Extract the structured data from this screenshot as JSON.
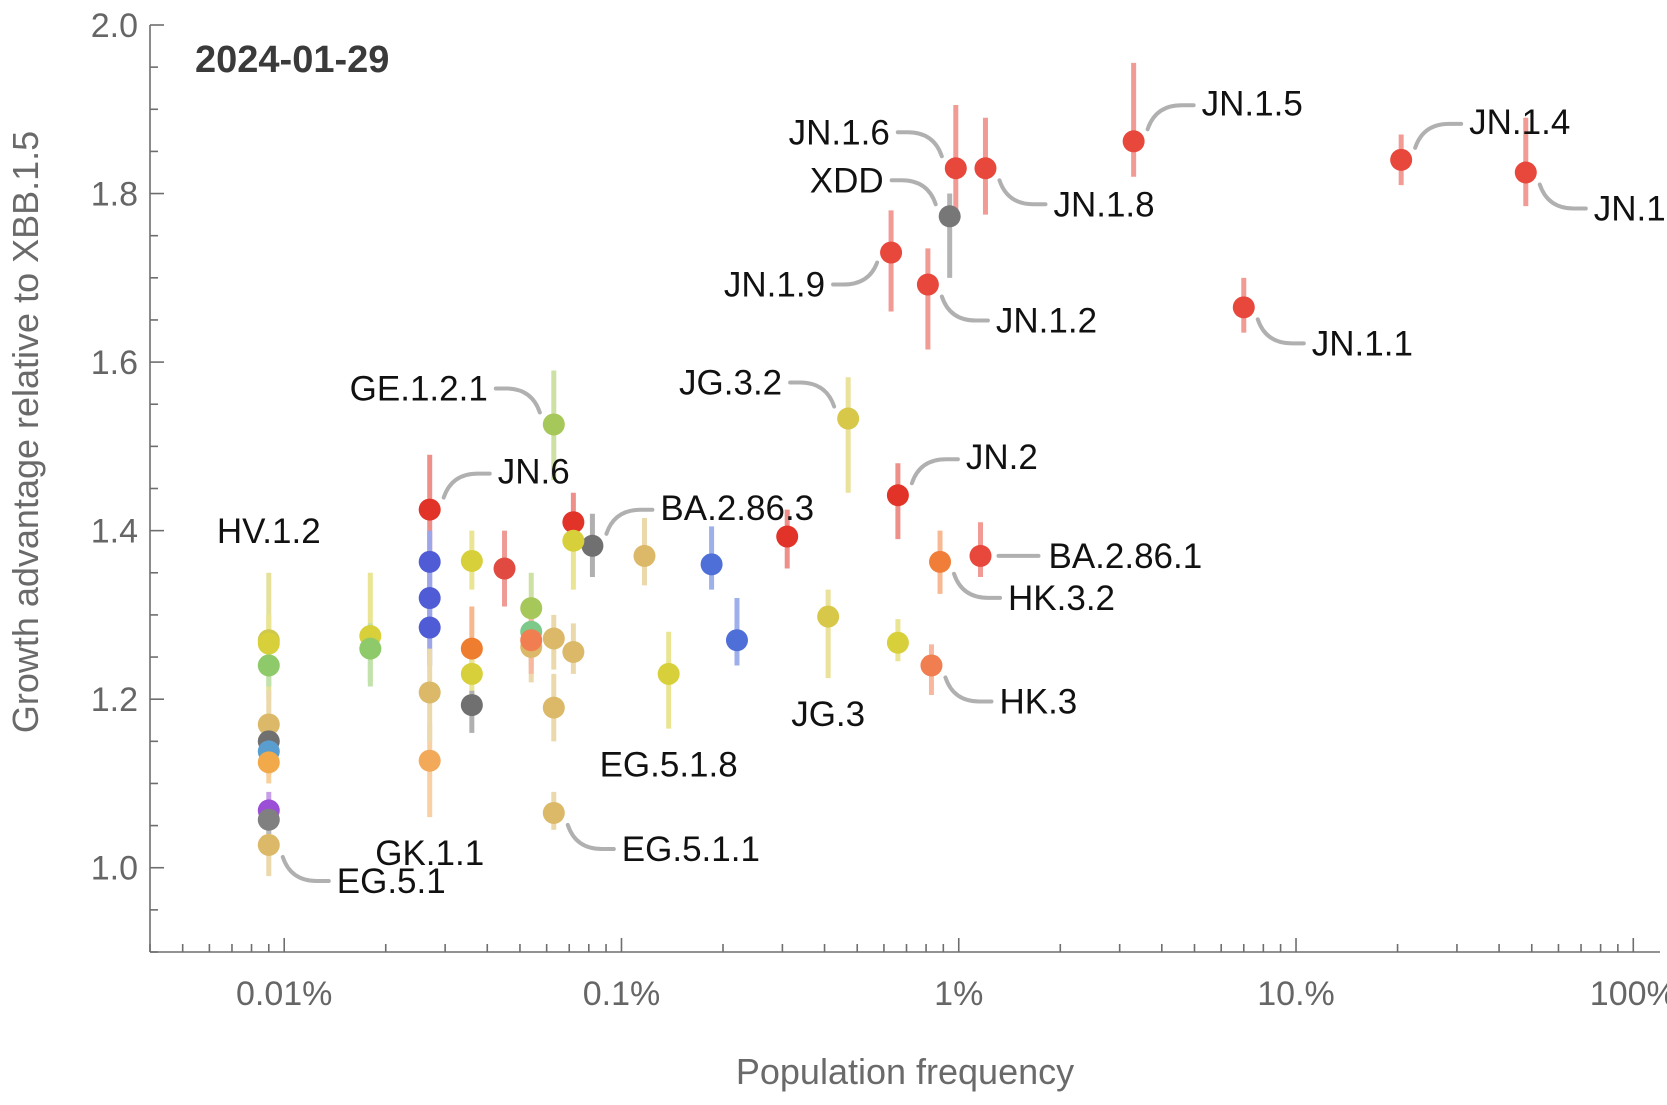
{
  "chart_data": {
    "type": "scatter",
    "title": "2024-01-29",
    "xlabel": "Population frequency",
    "ylabel": "Growth advantage relative to XBB.1.5",
    "x_scale": "log",
    "xlim": [
      4e-05,
      1.2
    ],
    "ylim": [
      0.9,
      2.0
    ],
    "x_ticks": [
      {
        "value": 0.0001,
        "label": "0.01%"
      },
      {
        "value": 0.001,
        "label": "0.1%"
      },
      {
        "value": 0.01,
        "label": "1%"
      },
      {
        "value": 0.1,
        "label": "10.%"
      },
      {
        "value": 1.0,
        "label": "100%"
      }
    ],
    "y_ticks": [
      {
        "value": 1.0,
        "label": "1.0"
      },
      {
        "value": 1.2,
        "label": "1.2"
      },
      {
        "value": 1.4,
        "label": "1.4"
      },
      {
        "value": 1.6,
        "label": "1.6"
      },
      {
        "value": 1.8,
        "label": "1.8"
      },
      {
        "value": 2.0,
        "label": "2.0"
      }
    ],
    "grid": false,
    "legend": "none",
    "points": [
      {
        "label": "JN.1",
        "x": 0.48,
        "y": 1.825,
        "lo": 1.785,
        "hi": 1.89,
        "color": "#e8473c",
        "label_side": "right"
      },
      {
        "label": "JN.1.4",
        "x": 0.205,
        "y": 1.84,
        "lo": 1.81,
        "hi": 1.87,
        "color": "#e8473c",
        "label_side": "right"
      },
      {
        "label": "JN.1.5",
        "x": 0.033,
        "y": 1.862,
        "lo": 1.82,
        "hi": 1.955,
        "color": "#e8473c",
        "label_side": "right"
      },
      {
        "label": "JN.1.6",
        "x": 0.0098,
        "y": 1.83,
        "lo": 1.77,
        "hi": 1.905,
        "color": "#e8473c",
        "label_side": "left"
      },
      {
        "label": "JN.1.8",
        "x": 0.012,
        "y": 1.83,
        "lo": 1.775,
        "hi": 1.89,
        "color": "#e8473c",
        "label_side": "right"
      },
      {
        "label": "XDD",
        "x": 0.0094,
        "y": 1.773,
        "lo": 1.7,
        "hi": 1.8,
        "color": "#777777",
        "label_side": "left"
      },
      {
        "label": "JN.1.9",
        "x": 0.0063,
        "y": 1.73,
        "lo": 1.66,
        "hi": 1.78,
        "color": "#e8473c",
        "label_side": "left"
      },
      {
        "label": "JN.1.2",
        "x": 0.0081,
        "y": 1.692,
        "lo": 1.615,
        "hi": 1.735,
        "color": "#e8473c",
        "label_side": "right"
      },
      {
        "label": "JN.1.1",
        "x": 0.07,
        "y": 1.665,
        "lo": 1.635,
        "hi": 1.7,
        "color": "#e8473c",
        "label_side": "right"
      },
      {
        "label": "GE.1.2.1",
        "x": 0.00063,
        "y": 1.526,
        "lo": 1.46,
        "hi": 1.59,
        "color": "#a6c85a",
        "label_side": "left"
      },
      {
        "label": "JG.3.2",
        "x": 0.0047,
        "y": 1.533,
        "lo": 1.445,
        "hi": 1.582,
        "color": "#d8c84a",
        "label_side": "left"
      },
      {
        "label": "JN.6",
        "x": 0.00027,
        "y": 1.425,
        "lo": 1.37,
        "hi": 1.49,
        "color": "#e23328",
        "label_side": "right"
      },
      {
        "label": "BA.2.86.3",
        "x": 0.00082,
        "y": 1.382,
        "lo": 1.345,
        "hi": 1.42,
        "color": "#707070",
        "label_side": "right"
      },
      {
        "label": "JN.2",
        "x": 0.0066,
        "y": 1.442,
        "lo": 1.39,
        "hi": 1.48,
        "color": "#e23328",
        "label_side": "right"
      },
      {
        "label": "BA.2.86.1",
        "x": 0.0116,
        "y": 1.37,
        "lo": 1.345,
        "hi": 1.41,
        "color": "#e8473c",
        "label_side": "right"
      },
      {
        "label": "HK.3.2",
        "x": 0.0088,
        "y": 1.363,
        "lo": 1.325,
        "hi": 1.4,
        "color": "#f07e38",
        "label_side": "right"
      },
      {
        "label": "HV.1.2",
        "x": 9e-05,
        "y": 1.27,
        "lo": 1.2,
        "hi": 1.35,
        "color": "#d0c84a",
        "label_side": "top"
      },
      {
        "label": "JG.3",
        "x": 0.0041,
        "y": 1.298,
        "lo": 1.225,
        "hi": 1.33,
        "color": "#d8c84a",
        "label_side": "bottom"
      },
      {
        "label": "HK.3",
        "x": 0.0083,
        "y": 1.24,
        "lo": 1.205,
        "hi": 1.265,
        "color": "#f07e50",
        "label_side": "right"
      },
      {
        "label": "EG.5.1.8",
        "x": 0.00138,
        "y": 1.23,
        "lo": 1.165,
        "hi": 1.28,
        "color": "#d8d03a",
        "label_side": "bottom"
      },
      {
        "label": "GK.1.1",
        "x": 0.00027,
        "y": 1.127,
        "lo": 1.06,
        "hi": 1.17,
        "color": "#f2a95a",
        "label_side": "bottom"
      },
      {
        "label": "EG.5.1.1",
        "x": 0.00063,
        "y": 1.065,
        "lo": 1.045,
        "hi": 1.09,
        "color": "#dbb968",
        "label_side": "right"
      },
      {
        "label": "EG.5.1",
        "x": 9e-05,
        "y": 1.027,
        "lo": 0.99,
        "hi": 1.06,
        "color": "#dbb968",
        "label_side": "right"
      },
      {
        "label": "",
        "x": 0.00027,
        "y": 1.363,
        "lo": 1.32,
        "hi": 1.4,
        "color": "#4f5cd6",
        "label_side": "none"
      },
      {
        "label": "",
        "x": 0.00027,
        "y": 1.32,
        "lo": 1.28,
        "hi": 1.35,
        "color": "#4f5cd6",
        "label_side": "none"
      },
      {
        "label": "",
        "x": 0.00027,
        "y": 1.285,
        "lo": 1.24,
        "hi": 1.32,
        "color": "#4f5cd6",
        "label_side": "none"
      },
      {
        "label": "",
        "x": 0.00027,
        "y": 1.208,
        "lo": 1.15,
        "hi": 1.26,
        "color": "#dbb968",
        "label_side": "none"
      },
      {
        "label": "",
        "x": 0.00018,
        "y": 1.275,
        "lo": 1.22,
        "hi": 1.35,
        "color": "#d8d03a",
        "label_side": "none"
      },
      {
        "label": "",
        "x": 0.00018,
        "y": 1.26,
        "lo": 1.215,
        "hi": 1.29,
        "color": "#8ec96a",
        "label_side": "none"
      },
      {
        "label": "",
        "x": 0.00036,
        "y": 1.364,
        "lo": 1.33,
        "hi": 1.4,
        "color": "#d8d03a",
        "label_side": "none"
      },
      {
        "label": "",
        "x": 0.00036,
        "y": 1.26,
        "lo": 1.22,
        "hi": 1.31,
        "color": "#ef7d2f",
        "label_side": "none"
      },
      {
        "label": "",
        "x": 0.00036,
        "y": 1.23,
        "lo": 1.19,
        "hi": 1.27,
        "color": "#d8d03a",
        "label_side": "none"
      },
      {
        "label": "",
        "x": 0.00036,
        "y": 1.193,
        "lo": 1.16,
        "hi": 1.21,
        "color": "#707070",
        "label_side": "none"
      },
      {
        "label": "",
        "x": 0.00045,
        "y": 1.355,
        "lo": 1.31,
        "hi": 1.4,
        "color": "#e04a40",
        "label_side": "none"
      },
      {
        "label": "",
        "x": 0.00054,
        "y": 1.308,
        "lo": 1.27,
        "hi": 1.35,
        "color": "#a6c85a",
        "label_side": "none"
      },
      {
        "label": "",
        "x": 0.00054,
        "y": 1.28,
        "lo": 1.24,
        "hi": 1.31,
        "color": "#7cc98a",
        "label_side": "none"
      },
      {
        "label": "",
        "x": 0.00054,
        "y": 1.262,
        "lo": 1.22,
        "hi": 1.3,
        "color": "#dbb968",
        "label_side": "none"
      },
      {
        "label": "",
        "x": 0.00054,
        "y": 1.27,
        "lo": 1.23,
        "hi": 1.3,
        "color": "#f07e50",
        "label_side": "none"
      },
      {
        "label": "",
        "x": 0.00063,
        "y": 1.272,
        "lo": 1.235,
        "hi": 1.3,
        "color": "#dbb968",
        "label_side": "none"
      },
      {
        "label": "",
        "x": 0.00063,
        "y": 1.19,
        "lo": 1.15,
        "hi": 1.23,
        "color": "#dbb968",
        "label_side": "none"
      },
      {
        "label": "",
        "x": 0.00072,
        "y": 1.41,
        "lo": 1.38,
        "hi": 1.445,
        "color": "#e23328",
        "label_side": "none"
      },
      {
        "label": "",
        "x": 0.00072,
        "y": 1.388,
        "lo": 1.33,
        "hi": 1.42,
        "color": "#d8d03a",
        "label_side": "none"
      },
      {
        "label": "",
        "x": 0.00072,
        "y": 1.256,
        "lo": 1.23,
        "hi": 1.29,
        "color": "#dbb968",
        "label_side": "none"
      },
      {
        "label": "",
        "x": 0.00117,
        "y": 1.37,
        "lo": 1.335,
        "hi": 1.415,
        "color": "#dbb968",
        "label_side": "none"
      },
      {
        "label": "",
        "x": 0.00185,
        "y": 1.36,
        "lo": 1.33,
        "hi": 1.405,
        "color": "#4f6fd8",
        "label_side": "none"
      },
      {
        "label": "",
        "x": 0.0022,
        "y": 1.27,
        "lo": 1.24,
        "hi": 1.32,
        "color": "#4f6fd8",
        "label_side": "none"
      },
      {
        "label": "",
        "x": 0.0031,
        "y": 1.393,
        "lo": 1.355,
        "hi": 1.425,
        "color": "#e23328",
        "label_side": "none"
      },
      {
        "label": "",
        "x": 0.0066,
        "y": 1.267,
        "lo": 1.245,
        "hi": 1.295,
        "color": "#d8d03a",
        "label_side": "none"
      },
      {
        "label": "",
        "x": 9e-05,
        "y": 1.266,
        "lo": 1.23,
        "hi": 1.3,
        "color": "#d8d03a",
        "label_side": "none"
      },
      {
        "label": "",
        "x": 9e-05,
        "y": 1.24,
        "lo": 1.215,
        "hi": 1.27,
        "color": "#8ec96a",
        "label_side": "none"
      },
      {
        "label": "",
        "x": 9e-05,
        "y": 1.17,
        "lo": 1.14,
        "hi": 1.21,
        "color": "#dbb968",
        "label_side": "none"
      },
      {
        "label": "",
        "x": 9e-05,
        "y": 1.15,
        "lo": 1.12,
        "hi": 1.18,
        "color": "#707070",
        "label_side": "none"
      },
      {
        "label": "",
        "x": 9e-05,
        "y": 1.138,
        "lo": 1.11,
        "hi": 1.16,
        "color": "#5a9ed0",
        "label_side": "none"
      },
      {
        "label": "",
        "x": 9e-05,
        "y": 1.125,
        "lo": 1.1,
        "hi": 1.15,
        "color": "#f2a94a",
        "label_side": "none"
      },
      {
        "label": "",
        "x": 9e-05,
        "y": 1.068,
        "lo": 1.05,
        "hi": 1.09,
        "color": "#9a4fd6",
        "label_side": "none"
      },
      {
        "label": "",
        "x": 9e-05,
        "y": 1.057,
        "lo": 1.04,
        "hi": 1.08,
        "color": "#808080",
        "label_side": "none"
      }
    ]
  }
}
